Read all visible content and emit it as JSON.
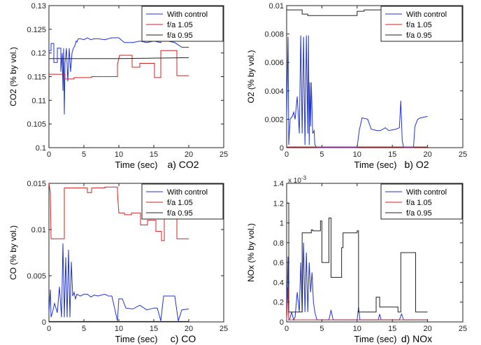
{
  "chart_data": [
    {
      "type": "line",
      "ylabel": "CO2 (% by vol.)",
      "xlabel": "Time (sec)",
      "caption": "a) CO2",
      "xlim": [
        0,
        25
      ],
      "ylim": [
        0.1,
        0.13
      ],
      "xticks": [
        "0",
        "5",
        "10",
        "15",
        "20",
        "25"
      ],
      "yticks": [
        "0.1",
        "0.105",
        "0.11",
        "0.115",
        "0.12",
        "0.125",
        "0.13"
      ],
      "legend_position": "top-right",
      "series": [
        {
          "name": "With control",
          "color": "#1f33cc",
          "x": [
            0,
            0.3,
            0.3,
            0.7,
            0.7,
            1.2,
            1.2,
            1.7,
            1.7,
            1.9,
            2.0,
            2.1,
            2.2,
            2.3,
            2.5,
            2.7,
            2.9,
            3.1,
            3.3,
            3.5,
            3.7,
            3.9,
            4.0,
            4.2,
            4.5,
            5.0,
            5.5,
            6.0,
            6.5,
            7.0,
            8.0,
            9.0,
            10.0,
            10.3,
            10.8,
            11.0,
            12.0,
            13.0,
            14.0,
            15.0,
            16.0,
            16.3,
            16.6,
            17.0,
            18.0,
            19.0,
            20.0
          ],
          "y": [
            0.1205,
            0.1205,
            0.122,
            0.122,
            0.118,
            0.118,
            0.121,
            0.121,
            0.116,
            0.12,
            0.112,
            0.121,
            0.107,
            0.118,
            0.121,
            0.114,
            0.121,
            0.116,
            0.12,
            0.121,
            0.1215,
            0.1225,
            0.1223,
            0.123,
            0.123,
            0.1228,
            0.1232,
            0.1228,
            0.123,
            0.123,
            0.1228,
            0.1232,
            0.1232,
            0.1228,
            0.1222,
            0.1222,
            0.1222,
            0.1225,
            0.1222,
            0.1225,
            0.1222,
            0.1235,
            0.1225,
            0.1225,
            0.1222,
            0.1212,
            0.1212
          ]
        },
        {
          "name": "f/a 1.05",
          "color": "#cc2222",
          "x": [
            0,
            2.3,
            2.3,
            3.6,
            3.6,
            6.1,
            6.1,
            9.8,
            9.8,
            10.1,
            10.1,
            11.9,
            11.9,
            13.0,
            13.0,
            15.1,
            15.1,
            16.0,
            16.0,
            18.3,
            18.3,
            20.0
          ],
          "y": [
            0.1155,
            0.1155,
            0.1145,
            0.1145,
            0.1148,
            0.1148,
            0.115,
            0.115,
            0.1175,
            0.1195,
            0.1195,
            0.1195,
            0.117,
            0.117,
            0.1178,
            0.1178,
            0.1148,
            0.1148,
            0.1205,
            0.1205,
            0.1152,
            0.1152
          ]
        },
        {
          "name": "f/a 0.95",
          "color": "#222222",
          "x": [
            0,
            5,
            10,
            15,
            20
          ],
          "y": [
            0.1188,
            0.1188,
            0.1188,
            0.1189,
            0.119
          ]
        }
      ]
    },
    {
      "type": "line",
      "ylabel": "O2 (% by vol.)",
      "xlabel": "Time (sec)",
      "caption": "b) O2",
      "xlim": [
        0,
        25
      ],
      "ylim": [
        0,
        0.01
      ],
      "xticks": [
        "0",
        "5",
        "10",
        "15",
        "20",
        "25"
      ],
      "yticks": [
        "0",
        "0.002",
        "0.004",
        "0.006",
        "0.008",
        "0.01"
      ],
      "legend_position": "top-right",
      "series": [
        {
          "name": "With control",
          "color": "#1f33cc",
          "x": [
            0,
            0.2,
            0.3,
            0.5,
            0.8,
            1.0,
            1.2,
            1.5,
            1.8,
            2.0,
            2.2,
            2.4,
            2.6,
            2.8,
            3.0,
            3.1,
            3.2,
            3.3,
            3.4,
            3.5,
            3.7,
            3.9,
            4.0,
            4.3,
            10.0,
            10.3,
            10.7,
            11.5,
            12.0,
            12.8,
            13.3,
            14.0,
            14.5,
            15.5,
            16.0,
            16.2,
            16.4,
            16.6,
            17.5,
            18.0,
            18.2,
            18.6,
            19.0,
            20.0
          ],
          "y": [
            0.002,
            0.0078,
            0.0002,
            0.002,
            0.0022,
            0.0025,
            0.002,
            0.0036,
            0.001,
            0.0079,
            0.001,
            0.0078,
            0.0002,
            0.0079,
            0.001,
            0.0079,
            0.0002,
            0.0046,
            0.0015,
            0.0046,
            0.001,
            0.0012,
            0.0002,
            0,
            0,
            0.0012,
            0.0021,
            0.002,
            0.0013,
            0.0012,
            0.0012,
            0.0014,
            0.0012,
            0.0013,
            0.0014,
            0.0033,
            0.0005,
            0,
            0,
            0,
            0.0015,
            0.002,
            0.0021,
            0.0022
          ]
        },
        {
          "name": "f/a 1.05",
          "color": "#cc2222",
          "x": [
            0,
            20
          ],
          "y": [
            5e-05,
            5e-05
          ]
        },
        {
          "name": "f/a 0.95",
          "color": "#222222",
          "x": [
            0,
            2.2,
            2.2,
            3.0,
            3.0,
            10.0,
            10.0,
            11.0,
            11.0,
            15.6,
            15.6,
            20.0
          ],
          "y": [
            0.0097,
            0.0097,
            0.0094,
            0.0094,
            0.0093,
            0.0093,
            0.0096,
            0.0096,
            0.0097,
            0.0097,
            0.0096,
            0.0096
          ]
        }
      ]
    },
    {
      "type": "line",
      "ylabel": "CO (% by vol.)",
      "xlabel": "Time (sec)",
      "caption": "c) CO",
      "xlim": [
        0,
        25
      ],
      "ylim": [
        0,
        0.015
      ],
      "xticks": [
        "0",
        "5",
        "10",
        "15",
        "20",
        "25"
      ],
      "yticks": [
        "0",
        "0.005",
        "0.01",
        "0.015"
      ],
      "legend_position": "top-right",
      "series": [
        {
          "name": "With control",
          "color": "#1f33cc",
          "x": [
            0,
            0.2,
            0.3,
            0.5,
            0.8,
            1.0,
            1.2,
            1.5,
            1.8,
            2.0,
            2.2,
            2.4,
            2.6,
            2.8,
            3.0,
            3.2,
            3.4,
            3.6,
            3.8,
            4.0,
            4.5,
            5.0,
            5.5,
            6.0,
            6.5,
            7.0,
            8.0,
            8.5,
            9.0,
            9.8,
            10.0,
            10.5,
            11.0,
            12.0,
            13.0,
            14.0,
            15.0,
            15.5,
            16.0,
            16.4,
            16.6,
            17.0,
            18.0,
            18.5,
            19.0,
            20.0
          ],
          "y": [
            0.001,
            0.0035,
            0.0005,
            0.001,
            0.002,
            0.0015,
            0.001,
            0.0038,
            0.0005,
            0.0085,
            0.0005,
            0.007,
            0.0005,
            0.0078,
            0.0005,
            0.0065,
            0.0028,
            0.0032,
            0.0025,
            0.003,
            0.0028,
            0.003,
            0.003,
            0.0027,
            0.0029,
            0.0028,
            0.003,
            0.0028,
            0.0028,
            0.0001,
            0.0025,
            0.0025,
            0.0015,
            0.0014,
            0.0018,
            0.0013,
            0.0015,
            0.0015,
            0.0001,
            0.0028,
            0.0028,
            0.0028,
            0.0028,
            0.0001,
            0.0013,
            0.0014
          ]
        },
        {
          "name": "f/a 1.05",
          "color": "#cc2222",
          "x": [
            0,
            0.2,
            0.3,
            2.2,
            2.2,
            5.5,
            5.5,
            6.1,
            6.1,
            8.0,
            8.0,
            9.8,
            9.8,
            10.0,
            10.3,
            10.8,
            10.8,
            11.8,
            11.8,
            13.1,
            13.1,
            14.1,
            14.1,
            15.3,
            15.3,
            16.1,
            16.1,
            16.5,
            16.5,
            18.3,
            18.3,
            20.0
          ],
          "y": [
            0.015,
            0.014,
            0.009,
            0.009,
            0.0145,
            0.0145,
            0.014,
            0.014,
            0.0145,
            0.0145,
            0.0146,
            0.0146,
            0.014,
            0.0118,
            0.0118,
            0.0118,
            0.0116,
            0.0116,
            0.0118,
            0.0118,
            0.0105,
            0.0105,
            0.011,
            0.011,
            0.0098,
            0.0098,
            0.0088,
            0.0088,
            0.0118,
            0.0118,
            0.009,
            0.009
          ]
        },
        {
          "name": "f/a 0.95",
          "color": "#222222",
          "x": [
            0,
            20
          ],
          "y": [
            5e-05,
            5e-05
          ]
        }
      ]
    },
    {
      "type": "line",
      "ylabel": "NOx (% by vol.)",
      "xlabel": "Time (sec)",
      "caption": "d) NOx",
      "xlim": [
        0,
        25
      ],
      "ylim": [
        0,
        0.0014
      ],
      "y_exponent": "x 10",
      "y_exponent_power": "-3",
      "xticks": [
        "0",
        "5",
        "10",
        "15",
        "20",
        "25"
      ],
      "yticks": [
        "0",
        "0.2",
        "0.4",
        "0.6",
        "0.8",
        "1",
        "1.2",
        "1.4"
      ],
      "legend_position": "top-right",
      "series": [
        {
          "name": "With control",
          "color": "#1f33cc",
          "x": [
            0,
            0.2,
            0.3,
            0.5,
            0.7,
            1.0,
            1.2,
            1.5,
            1.8,
            2.0,
            2.2,
            2.4,
            2.6,
            2.8,
            3.0,
            3.2,
            3.4,
            3.6,
            3.8,
            4.0,
            4.3,
            5.0,
            6.0,
            6.3,
            6.6,
            7.0,
            8.0,
            10.0,
            10.2,
            10.4,
            11.0,
            13.0,
            13.2,
            13.4,
            14.0,
            16.0,
            16.3,
            16.6,
            20.0
          ],
          "y": [
            2e-05,
            0.00066,
            2e-05,
            4e-05,
            0.0001,
            2e-05,
            5e-05,
            0.0003,
            0.0001,
            0.0006,
            0.0001,
            0.0008,
            0.0001,
            0.0007,
            0.0001,
            0.0006,
            0.0003,
            0.0005,
            0.0002,
            0.0001,
            2e-05,
            2e-05,
            2e-05,
            0.00012,
            2e-05,
            2e-05,
            2e-05,
            2e-05,
            0.00015,
            2e-05,
            2e-05,
            2e-05,
            8e-05,
            2e-05,
            2e-05,
            2e-05,
            8e-05,
            2e-05,
            2e-05
          ]
        },
        {
          "name": "f/a 1.05",
          "color": "#cc2222",
          "x": [
            0,
            0.2,
            0.3,
            20.0
          ],
          "y": [
            3e-05,
            0.00035,
            2e-05,
            2e-05
          ]
        },
        {
          "name": "f/a 0.95",
          "color": "#222222",
          "x": [
            0,
            0.3,
            0.3,
            2.2,
            2.2,
            3.5,
            3.5,
            3.7,
            3.7,
            4.8,
            4.8,
            5.0,
            5.0,
            6.0,
            6.0,
            6.3,
            6.3,
            7.8,
            7.8,
            8.0,
            8.0,
            10.0,
            10.0,
            10.2,
            10.2,
            12.7,
            12.7,
            13.2,
            13.2,
            15.8,
            15.8,
            16.2,
            16.2,
            18.3,
            18.3,
            20.0
          ],
          "y": [
            0.0012,
            0.0012,
            0.0001,
            0.0001,
            0.0009,
            0.0009,
            0.00093,
            0.00093,
            0.00092,
            0.00092,
            0.00102,
            0.00102,
            0.0006,
            0.0006,
            0.00105,
            0.00105,
            0.00045,
            0.00045,
            0.00075,
            0.00075,
            0.0009,
            0.0009,
            0.00092,
            0.00092,
            0.0001,
            0.0001,
            0.00025,
            0.00025,
            0.00015,
            0.00015,
            0.0001,
            0.0001,
            0.0007,
            0.0007,
            0.0001,
            0.0001
          ]
        }
      ]
    }
  ]
}
